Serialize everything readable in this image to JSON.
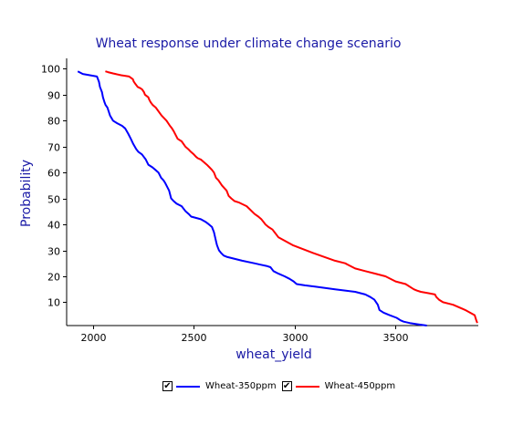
{
  "chart_data": {
    "type": "line",
    "title": "Wheat response under climate change scenario",
    "xlabel": "wheat_yield",
    "ylabel": "Probability",
    "xlim": [
      1870,
      3910
    ],
    "ylim": [
      1,
      104
    ],
    "xticks": [
      2000,
      2500,
      3000,
      3500
    ],
    "yticks": [
      10,
      20,
      30,
      40,
      50,
      60,
      70,
      80,
      90,
      100
    ],
    "series": [
      {
        "name": "Wheat-350ppm",
        "color": "#0000ff",
        "x": [
          1925,
          1950,
          2020,
          2030,
          2035,
          2045,
          2050,
          2058,
          2063,
          2072,
          2085,
          2100,
          2120,
          2145,
          2160,
          2175,
          2188,
          2200,
          2215,
          2225,
          2243,
          2262,
          2275,
          2295,
          2310,
          2325,
          2338,
          2350,
          2358,
          2365,
          2378,
          2388,
          2400,
          2415,
          2440,
          2460,
          2475,
          2487,
          2510,
          2535,
          2558,
          2575,
          2590,
          2600,
          2606,
          2612,
          2615,
          2620,
          2625,
          2635,
          2648,
          2663,
          2688,
          2740,
          2800,
          2830,
          2860,
          2880,
          2895,
          2920,
          2950,
          2975,
          2995,
          3010,
          3050,
          3100,
          3150,
          3200,
          3250,
          3300,
          3350,
          3375,
          3395,
          3412,
          3420,
          3440,
          3470,
          3505,
          3525,
          3540,
          3570,
          3610,
          3655
        ],
        "y": [
          99,
          98,
          97,
          95,
          93,
          91,
          89,
          87,
          86,
          85,
          82,
          80,
          79,
          78,
          77,
          75,
          73,
          71,
          69,
          68,
          67,
          65,
          63,
          62,
          61,
          60,
          58,
          57,
          56,
          55,
          53,
          50,
          49,
          48,
          47,
          45,
          44,
          43,
          42.5,
          42,
          41,
          40,
          39,
          37,
          35,
          33,
          32,
          31,
          30,
          29,
          28,
          27.5,
          27,
          26,
          25,
          24.5,
          24,
          23.5,
          22,
          21,
          20,
          19,
          18,
          17,
          16.5,
          16,
          15.5,
          15,
          14.5,
          14,
          13,
          12,
          11,
          9,
          7,
          6,
          5,
          4,
          3,
          2.5,
          2,
          1.5,
          1
        ]
      },
      {
        "name": "Wheat-450ppm",
        "color": "#ff0000",
        "x": [
          2062,
          2075,
          2100,
          2140,
          2180,
          2198,
          2203,
          2212,
          2222,
          2235,
          2244,
          2253,
          2258,
          2275,
          2280,
          2287,
          2297,
          2312,
          2340,
          2365,
          2382,
          2392,
          2400,
          2420,
          2440,
          2458,
          2473,
          2485,
          2500,
          2512,
          2520,
          2535,
          2550,
          2565,
          2578,
          2590,
          2600,
          2610,
          2622,
          2640,
          2663,
          2673,
          2686,
          2702,
          2722,
          2762,
          2802,
          2820,
          2835,
          2845,
          2855,
          2870,
          2890,
          2920,
          2990,
          3090,
          3200,
          3250,
          3300,
          3350,
          3400,
          3450,
          3500,
          3550,
          3590,
          3605,
          3625,
          3660,
          3695,
          3702,
          3715,
          3735,
          3785,
          3845,
          3892,
          3900,
          3905
        ],
        "y": [
          99,
          98.7,
          98.2,
          97.5,
          97,
          96,
          95,
          94,
          93,
          92.5,
          92,
          91,
          90,
          89,
          88,
          87,
          86,
          85,
          82,
          80,
          78,
          77,
          76,
          73,
          72,
          70,
          69,
          68,
          67,
          66,
          65.5,
          65,
          64,
          63,
          62,
          61,
          60,
          58,
          57,
          55,
          53,
          51,
          50,
          49,
          48.5,
          47,
          44,
          43,
          42,
          41,
          40,
          39,
          38,
          35,
          32,
          29,
          26,
          25,
          23,
          22,
          21,
          20,
          18,
          17,
          15,
          14.5,
          14,
          13.5,
          13,
          12,
          11,
          10,
          9,
          7,
          5,
          3,
          2
        ]
      }
    ],
    "legend": [
      "Wheat-350ppm",
      "Wheat-450ppm"
    ],
    "legend_position": "bottom",
    "grid": false
  },
  "legend_check_glyph": "✔"
}
